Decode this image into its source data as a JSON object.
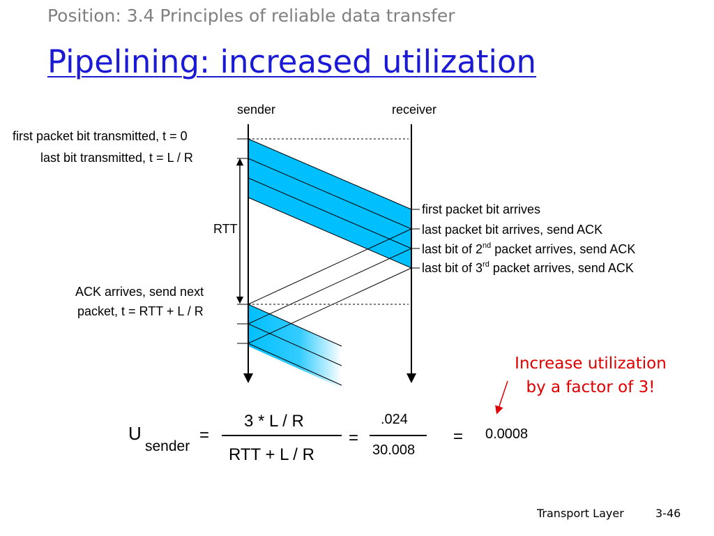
{
  "header": {
    "position": "Position:  3.4 Principles of reliable data transfer",
    "title": "Pipelining: increased utilization"
  },
  "diagram": {
    "sender_label": "sender",
    "receiver_label": "receiver",
    "left_labels": {
      "first_bit": "first packet bit transmitted, t = 0",
      "last_bit": "last bit transmitted, t = L / R",
      "rtt": "RTT",
      "ack_line1": "ACK arrives, send next",
      "ack_line2": "packet, t = RTT + L / R"
    },
    "right_labels": {
      "first_arrives": "first packet bit arrives",
      "last_arrives": "last packet bit arrives, send ACK",
      "second_pre": "last bit of 2",
      "second_sup": "nd",
      "second_post": " packet arrives, send ACK",
      "third_pre": "last bit of 3",
      "third_sup": "rd",
      "third_post": " packet arrives, send ACK"
    },
    "colors": {
      "packet_fill": "#00bfff",
      "line": "#000000"
    }
  },
  "callout": {
    "line1": "Increase utilization",
    "line2": "by a factor of 3!",
    "color": "#e00000"
  },
  "formula": {
    "u": "U",
    "sub": "sender",
    "eq1": "=",
    "numerator": "3 * L / R",
    "denominator": "RTT + L / R",
    "eq2": "=",
    "num2": ".024",
    "den2": "30.008",
    "eq3": "=",
    "result": "0.0008"
  },
  "footer": {
    "chapter": "Transport Layer",
    "page": "3-46"
  }
}
